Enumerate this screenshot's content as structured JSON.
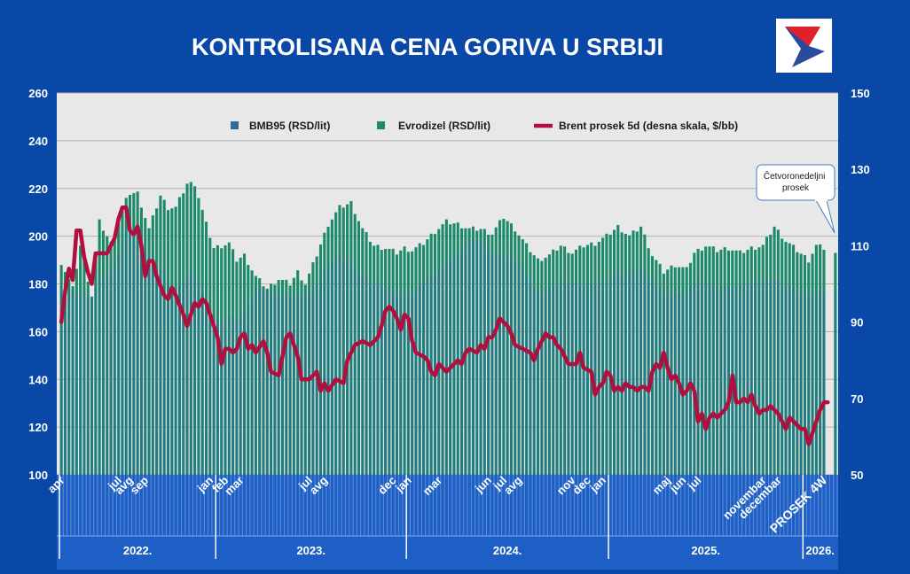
{
  "title": "KONTROLISANA CENA GORIVA U SRBIJI",
  "logo_icon": "nis-logo-icon",
  "colors": {
    "background": "#0a48a8",
    "plot_bg": "#e8e8e8",
    "bmb95": "#2e6c9e",
    "evrodizel": "#1c8a6a",
    "brent": "#b0103e",
    "axis_text": "#ffffff"
  },
  "legend": {
    "bmb95": "BMB95 (RSD/lit)",
    "evrodizel": "Evrodizel (RSD/lit)",
    "brent": "Brent prosek  5d (desna skala, $/bb)"
  },
  "callout": "Četvoronedeljni prosek",
  "chart_data": {
    "type": "bar",
    "title": "KONTROLISANA CENA GORIVA U SRBIJI",
    "ylim": [
      100,
      260
    ],
    "yticks": [
      100,
      120,
      140,
      160,
      180,
      200,
      220,
      240,
      260
    ],
    "y2lim": [
      50,
      150
    ],
    "y2ticks": [
      50,
      70,
      90,
      110,
      130,
      150
    ],
    "grid": true,
    "legend_position": "top",
    "month_labels": [
      {
        "label": "apr",
        "week": 1
      },
      {
        "label": "jul",
        "week": 16
      },
      {
        "label": "avg",
        "week": 19
      },
      {
        "label": "sep",
        "week": 23
      },
      {
        "label": "jan",
        "week": 40
      },
      {
        "label": "feb",
        "week": 44
      },
      {
        "label": "mar",
        "week": 48
      },
      {
        "label": "jul",
        "week": 66
      },
      {
        "label": "avg",
        "week": 70
      },
      {
        "label": "dec",
        "week": 88
      },
      {
        "label": "jan",
        "week": 92
      },
      {
        "label": "mar",
        "week": 100
      },
      {
        "label": "jun",
        "week": 113
      },
      {
        "label": "jul",
        "week": 117
      },
      {
        "label": "avg",
        "week": 121
      },
      {
        "label": "nov",
        "week": 135
      },
      {
        "label": "dec",
        "week": 139
      },
      {
        "label": "jan",
        "week": 143
      },
      {
        "label": "maj",
        "week": 160
      },
      {
        "label": "jun",
        "week": 164
      },
      {
        "label": "jul",
        "week": 168
      },
      {
        "label": "novembar",
        "week": 185
      },
      {
        "label": "decembar",
        "week": 189
      },
      {
        "label": "PROSEK 4W",
        "week": 201
      }
    ],
    "years": [
      {
        "label": "2022.",
        "from_week": 0,
        "to_week": 41
      },
      {
        "label": "2023.",
        "from_week": 41,
        "to_week": 91
      },
      {
        "label": "2024.",
        "from_week": 91,
        "to_week": 144
      },
      {
        "label": "2025.",
        "from_week": 144,
        "to_week": 195
      },
      {
        "label": "2026.",
        "from_week": 195,
        "to_week": 204
      }
    ],
    "x": {
      "weeks": 204,
      "average_bar_week": 203
    },
    "evrodizel_keypoints": [
      [
        0,
        189
      ],
      [
        3,
        178
      ],
      [
        5,
        196
      ],
      [
        8,
        175
      ],
      [
        10,
        206
      ],
      [
        13,
        197
      ],
      [
        16,
        212
      ],
      [
        18,
        218
      ],
      [
        20,
        218
      ],
      [
        23,
        203
      ],
      [
        26,
        217
      ],
      [
        28,
        212
      ],
      [
        30,
        212
      ],
      [
        33,
        222
      ],
      [
        35,
        222
      ],
      [
        38,
        205
      ],
      [
        40,
        195
      ],
      [
        42,
        196
      ],
      [
        44,
        197
      ],
      [
        46,
        190
      ],
      [
        48,
        192
      ],
      [
        51,
        183
      ],
      [
        54,
        178
      ],
      [
        57,
        182
      ],
      [
        60,
        180
      ],
      [
        62,
        185
      ],
      [
        64,
        180
      ],
      [
        66,
        188
      ],
      [
        70,
        205
      ],
      [
        73,
        212
      ],
      [
        76,
        214
      ],
      [
        79,
        203
      ],
      [
        82,
        196
      ],
      [
        85,
        195
      ],
      [
        88,
        193
      ],
      [
        90,
        195
      ],
      [
        92,
        194
      ],
      [
        95,
        197
      ],
      [
        98,
        202
      ],
      [
        101,
        206
      ],
      [
        104,
        205
      ],
      [
        107,
        203
      ],
      [
        110,
        203
      ],
      [
        113,
        201
      ],
      [
        116,
        208
      ],
      [
        119,
        203
      ],
      [
        122,
        196
      ],
      [
        125,
        190
      ],
      [
        128,
        192
      ],
      [
        131,
        196
      ],
      [
        134,
        193
      ],
      [
        137,
        196
      ],
      [
        140,
        197
      ],
      [
        143,
        200
      ],
      [
        146,
        204
      ],
      [
        149,
        200
      ],
      [
        152,
        204
      ],
      [
        155,
        192
      ],
      [
        158,
        185
      ],
      [
        161,
        188
      ],
      [
        164,
        186
      ],
      [
        166,
        193
      ],
      [
        169,
        196
      ],
      [
        172,
        194
      ],
      [
        175,
        195
      ],
      [
        178,
        193
      ],
      [
        181,
        195
      ],
      [
        184,
        196
      ],
      [
        187,
        204
      ],
      [
        190,
        198
      ],
      [
        193,
        194
      ],
      [
        196,
        190
      ],
      [
        198,
        196
      ],
      [
        200,
        195
      ]
    ],
    "bmb95_keypoints": [
      [
        0,
        178
      ],
      [
        3,
        177
      ],
      [
        5,
        175
      ],
      [
        8,
        175
      ],
      [
        10,
        182
      ],
      [
        13,
        186
      ],
      [
        16,
        196
      ],
      [
        18,
        206
      ],
      [
        20,
        202
      ],
      [
        23,
        192
      ],
      [
        26,
        186
      ],
      [
        28,
        180
      ],
      [
        30,
        177
      ],
      [
        33,
        183
      ],
      [
        35,
        185
      ],
      [
        38,
        172
      ],
      [
        40,
        165
      ],
      [
        42,
        164
      ],
      [
        44,
        166
      ],
      [
        46,
        166
      ],
      [
        48,
        168
      ],
      [
        51,
        178
      ],
      [
        54,
        177
      ],
      [
        57,
        175
      ],
      [
        60,
        175
      ],
      [
        62,
        176
      ],
      [
        64,
        176
      ],
      [
        66,
        178
      ],
      [
        70,
        188
      ],
      [
        73,
        192
      ],
      [
        76,
        190
      ],
      [
        79,
        183
      ],
      [
        82,
        181
      ],
      [
        85,
        178
      ],
      [
        88,
        176
      ],
      [
        90,
        176
      ],
      [
        92,
        176
      ],
      [
        95,
        181
      ],
      [
        98,
        185
      ],
      [
        101,
        189
      ],
      [
        104,
        193
      ],
      [
        107,
        198
      ],
      [
        110,
        198
      ],
      [
        113,
        193
      ],
      [
        116,
        193
      ],
      [
        119,
        190
      ],
      [
        122,
        183
      ],
      [
        125,
        177
      ],
      [
        128,
        178
      ],
      [
        131,
        181
      ],
      [
        134,
        181
      ],
      [
        137,
        180
      ],
      [
        140,
        180
      ],
      [
        143,
        181
      ],
      [
        146,
        186
      ],
      [
        149,
        185
      ],
      [
        152,
        186
      ],
      [
        155,
        182
      ],
      [
        158,
        177
      ],
      [
        161,
        176
      ],
      [
        164,
        176
      ],
      [
        166,
        181
      ],
      [
        169,
        181
      ],
      [
        172,
        178
      ],
      [
        175,
        179
      ],
      [
        178,
        179
      ],
      [
        181,
        181
      ],
      [
        184,
        181
      ],
      [
        187,
        182
      ],
      [
        190,
        180
      ],
      [
        193,
        177
      ],
      [
        196,
        175
      ],
      [
        198,
        177
      ],
      [
        200,
        176
      ]
    ],
    "evrodizel_average": 193,
    "bmb95_average": 176,
    "brent_keypoints": [
      [
        0,
        90
      ],
      [
        1,
        98
      ],
      [
        2,
        104
      ],
      [
        3,
        101
      ],
      [
        4,
        114
      ],
      [
        5,
        114
      ],
      [
        6,
        107
      ],
      [
        7,
        103
      ],
      [
        8,
        100
      ],
      [
        9,
        108
      ],
      [
        10,
        108
      ],
      [
        12,
        108
      ],
      [
        14,
        112
      ],
      [
        15,
        117
      ],
      [
        16,
        120
      ],
      [
        17,
        120
      ],
      [
        18,
        114
      ],
      [
        19,
        113
      ],
      [
        20,
        115
      ],
      [
        21,
        110
      ],
      [
        22,
        102
      ],
      [
        23,
        106
      ],
      [
        24,
        106
      ],
      [
        25,
        102
      ],
      [
        27,
        97
      ],
      [
        28,
        96
      ],
      [
        29,
        99
      ],
      [
        30,
        97
      ],
      [
        32,
        92
      ],
      [
        33,
        89
      ],
      [
        35,
        95
      ],
      [
        36,
        94
      ],
      [
        37,
        96
      ],
      [
        38,
        95
      ],
      [
        40,
        89
      ],
      [
        41,
        86
      ],
      [
        42,
        79
      ],
      [
        43,
        83
      ],
      [
        44,
        83
      ],
      [
        45,
        82
      ],
      [
        46,
        83
      ],
      [
        47,
        86
      ],
      [
        48,
        87
      ],
      [
        49,
        83
      ],
      [
        50,
        84
      ],
      [
        51,
        82
      ],
      [
        53,
        85
      ],
      [
        54,
        82
      ],
      [
        55,
        77
      ],
      [
        57,
        76
      ],
      [
        59,
        86
      ],
      [
        60,
        87
      ],
      [
        62,
        81
      ],
      [
        63,
        75
      ],
      [
        65,
        75
      ],
      [
        67,
        77
      ],
      [
        68,
        72
      ],
      [
        69,
        74
      ],
      [
        70,
        72
      ],
      [
        72,
        75
      ],
      [
        74,
        74
      ],
      [
        75,
        80
      ],
      [
        77,
        84
      ],
      [
        79,
        85
      ],
      [
        81,
        84
      ],
      [
        83,
        86
      ],
      [
        84,
        89
      ],
      [
        85,
        93
      ],
      [
        86,
        94
      ],
      [
        87,
        93
      ],
      [
        88,
        91
      ],
      [
        89,
        88
      ],
      [
        90,
        92
      ],
      [
        91,
        91
      ],
      [
        92,
        85
      ],
      [
        93,
        82
      ],
      [
        95,
        81
      ],
      [
        96,
        80
      ],
      [
        97,
        77
      ],
      [
        98,
        76
      ],
      [
        99,
        79
      ],
      [
        101,
        77
      ],
      [
        102,
        78
      ],
      [
        104,
        80
      ],
      [
        105,
        79
      ],
      [
        106,
        82
      ],
      [
        107,
        83
      ],
      [
        109,
        82
      ],
      [
        110,
        84
      ],
      [
        111,
        83
      ],
      [
        112,
        86
      ],
      [
        113,
        86
      ],
      [
        114,
        88
      ],
      [
        115,
        91
      ],
      [
        116,
        90
      ],
      [
        117,
        89
      ],
      [
        118,
        87
      ],
      [
        119,
        84
      ],
      [
        121,
        83
      ],
      [
        123,
        82
      ],
      [
        124,
        80
      ],
      [
        125,
        83
      ],
      [
        126,
        85
      ],
      [
        127,
        87
      ],
      [
        128,
        86
      ],
      [
        129,
        86
      ],
      [
        130,
        84
      ],
      [
        131,
        83
      ],
      [
        132,
        81
      ],
      [
        133,
        79
      ],
      [
        135,
        79
      ],
      [
        136,
        82
      ],
      [
        137,
        78
      ],
      [
        139,
        77
      ],
      [
        140,
        71
      ],
      [
        141,
        73
      ],
      [
        142,
        74
      ],
      [
        143,
        77
      ],
      [
        144,
        76
      ],
      [
        145,
        72
      ],
      [
        146,
        73
      ],
      [
        147,
        72
      ],
      [
        148,
        74
      ],
      [
        149,
        73
      ],
      [
        150,
        73
      ],
      [
        151,
        72
      ],
      [
        152,
        73
      ],
      [
        153,
        73
      ],
      [
        154,
        72
      ],
      [
        155,
        77
      ],
      [
        156,
        79
      ],
      [
        157,
        78
      ],
      [
        158,
        82
      ],
      [
        159,
        78
      ],
      [
        160,
        75
      ],
      [
        161,
        76
      ],
      [
        162,
        74
      ],
      [
        163,
        71
      ],
      [
        164,
        72
      ],
      [
        165,
        74
      ],
      [
        166,
        72
      ],
      [
        167,
        64
      ],
      [
        168,
        66
      ],
      [
        169,
        62
      ],
      [
        170,
        65
      ],
      [
        171,
        66
      ],
      [
        172,
        65
      ],
      [
        173,
        66
      ],
      [
        174,
        67
      ],
      [
        175,
        69
      ],
      [
        176,
        76
      ],
      [
        177,
        69
      ],
      [
        178,
        69
      ],
      [
        179,
        70
      ],
      [
        180,
        69
      ],
      [
        181,
        71
      ],
      [
        182,
        68
      ],
      [
        183,
        66
      ],
      [
        184,
        67
      ],
      [
        185,
        67
      ],
      [
        186,
        68
      ],
      [
        187,
        67
      ],
      [
        188,
        66
      ],
      [
        189,
        64
      ],
      [
        190,
        62
      ],
      [
        191,
        65
      ],
      [
        192,
        64
      ],
      [
        193,
        63
      ],
      [
        194,
        62
      ],
      [
        195,
        62
      ],
      [
        196,
        58
      ],
      [
        197,
        61
      ],
      [
        198,
        64
      ],
      [
        199,
        67
      ],
      [
        200,
        69
      ],
      [
        201,
        69
      ]
    ]
  }
}
